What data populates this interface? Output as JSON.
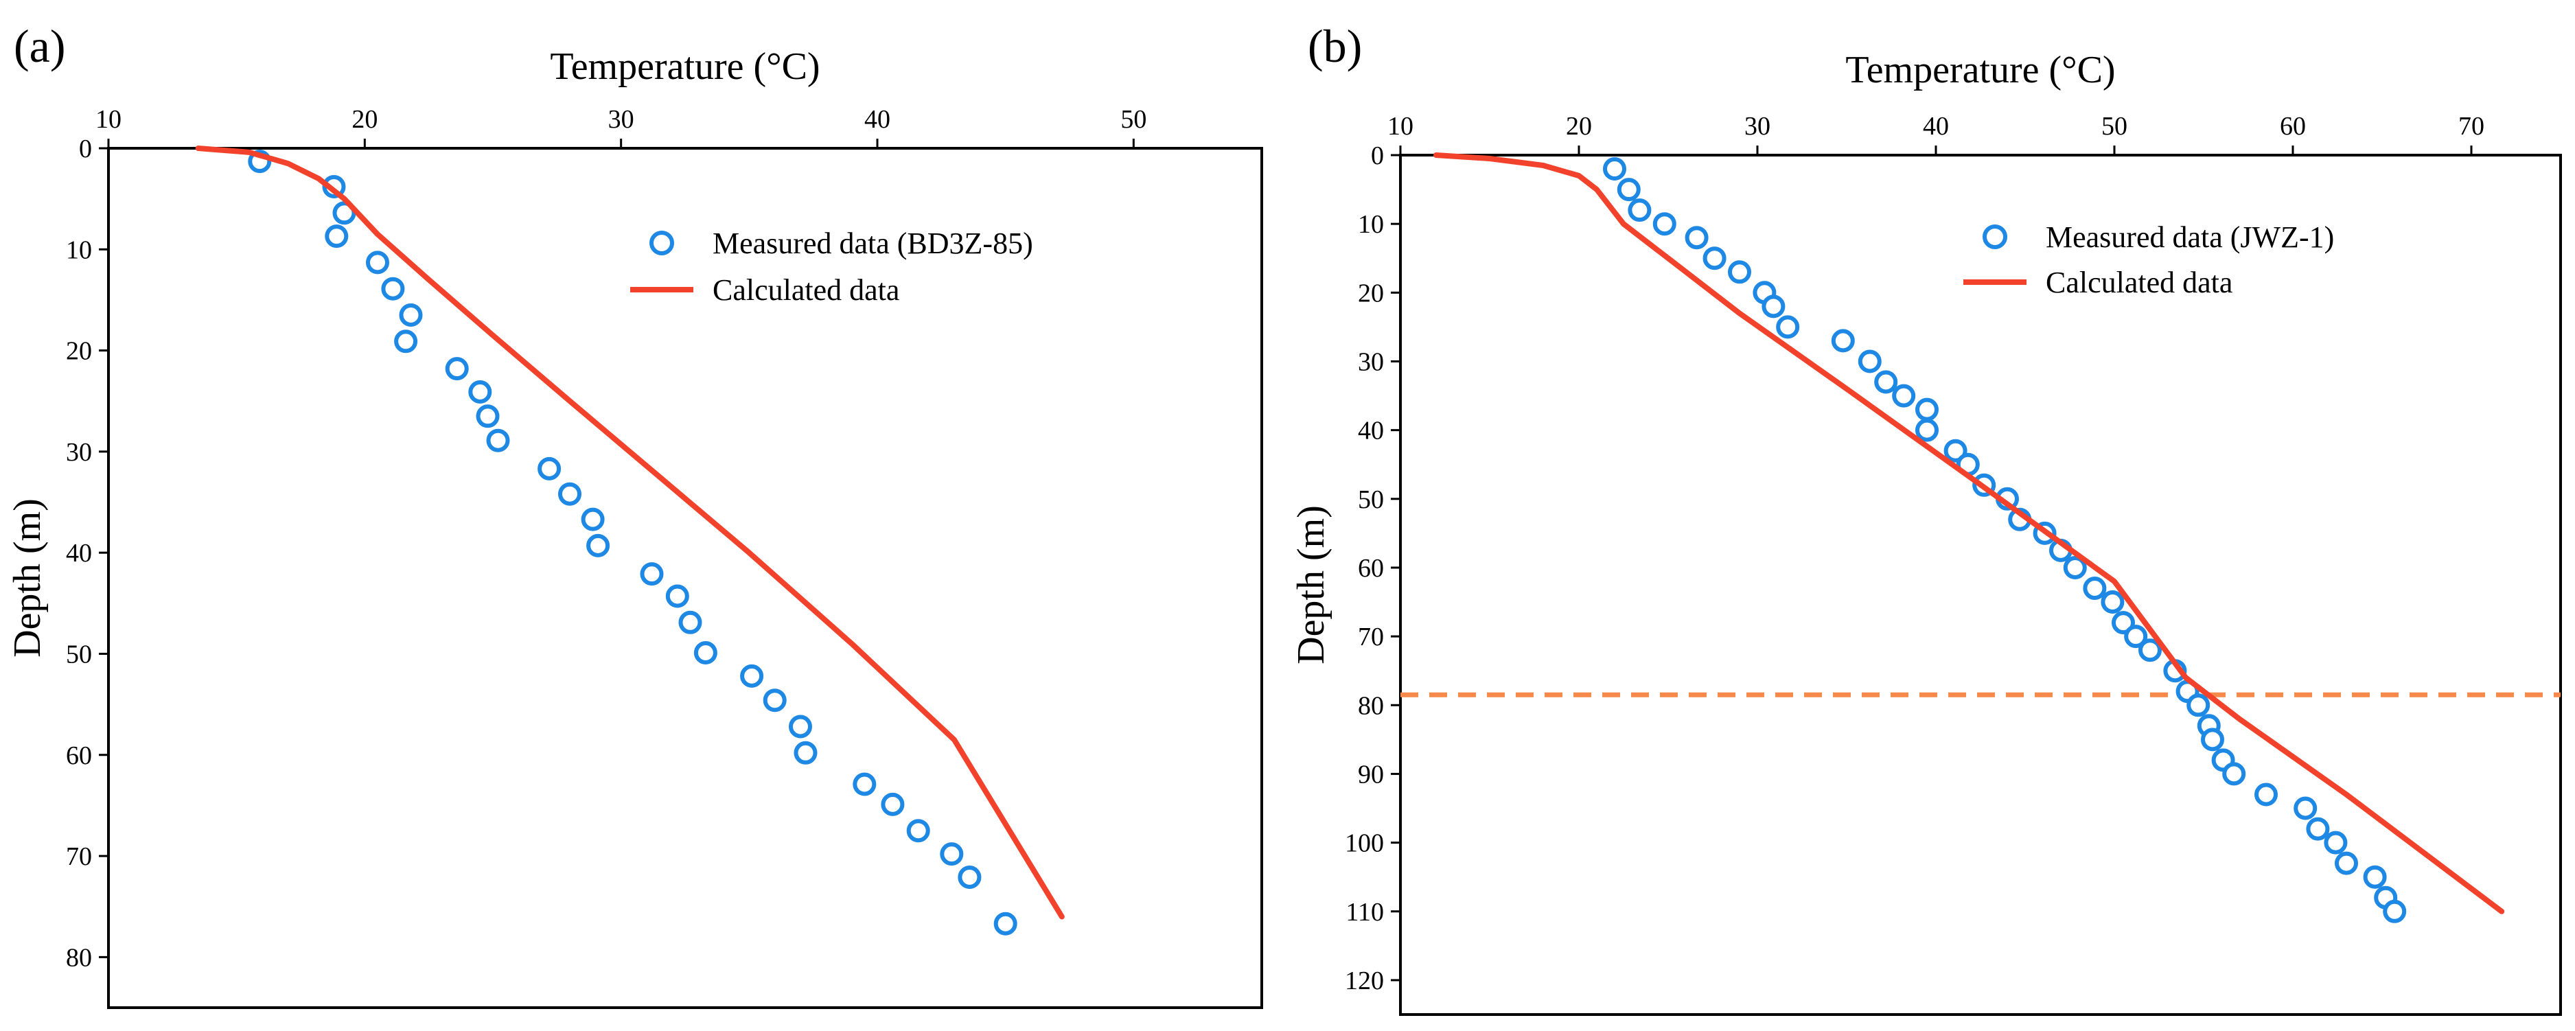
{
  "chart_data": [
    {
      "type": "scatter",
      "panel_label": "(a)",
      "xlabel": "Temperature (°C)",
      "ylabel": "Depth (m)",
      "x_axis_position": "top",
      "y_axis_inverted": true,
      "xlim": [
        10,
        55
      ],
      "ylim": [
        0,
        85
      ],
      "xticks": [
        10,
        20,
        30,
        40,
        50
      ],
      "yticks": [
        0,
        10,
        20,
        30,
        40,
        50,
        60,
        70,
        80
      ],
      "grid": false,
      "legend_position": "top-right",
      "series": [
        {
          "name": "Measured data (BD3Z-85)",
          "kind": "markers",
          "marker": "open-circle",
          "color": "#1E88E5",
          "points": [
            [
              15.9,
              1.3
            ],
            [
              18.8,
              3.8
            ],
            [
              19.2,
              6.4
            ],
            [
              18.9,
              8.7
            ],
            [
              20.5,
              11.3
            ],
            [
              21.1,
              13.9
            ],
            [
              21.8,
              16.5
            ],
            [
              21.6,
              19.1
            ],
            [
              23.6,
              21.8
            ],
            [
              24.5,
              24.1
            ],
            [
              24.8,
              26.5
            ],
            [
              25.2,
              28.9
            ],
            [
              27.2,
              31.7
            ],
            [
              28.0,
              34.2
            ],
            [
              28.9,
              36.7
            ],
            [
              29.1,
              39.3
            ],
            [
              31.2,
              42.1
            ],
            [
              32.2,
              44.3
            ],
            [
              32.7,
              46.9
            ],
            [
              33.3,
              49.9
            ],
            [
              35.1,
              52.2
            ],
            [
              36.0,
              54.6
            ],
            [
              37.0,
              57.2
            ],
            [
              37.2,
              59.8
            ],
            [
              39.5,
              62.9
            ],
            [
              40.6,
              64.9
            ],
            [
              41.6,
              67.5
            ],
            [
              42.9,
              69.8
            ],
            [
              43.6,
              72.1
            ],
            [
              45.0,
              76.7
            ]
          ]
        },
        {
          "name": "Calculated data",
          "kind": "line",
          "color": "#F2422B",
          "points": [
            [
              13.5,
              0
            ],
            [
              15.5,
              0.4
            ],
            [
              17.0,
              1.5
            ],
            [
              18.2,
              3.0
            ],
            [
              19.2,
              5.0
            ],
            [
              20.5,
              8.5
            ],
            [
              22.5,
              13.0
            ],
            [
              25.0,
              18.5
            ],
            [
              28.0,
              25.0
            ],
            [
              31.5,
              32.5
            ],
            [
              35.0,
              40.0
            ],
            [
              39.0,
              49.0
            ],
            [
              43.0,
              58.5
            ],
            [
              47.2,
              76.0
            ]
          ]
        }
      ]
    },
    {
      "type": "scatter",
      "panel_label": "(b)",
      "xlabel": "Temperature (°C)",
      "ylabel": "Depth (m)",
      "x_axis_position": "top",
      "y_axis_inverted": true,
      "xlim": [
        10,
        75
      ],
      "ylim": [
        0,
        125
      ],
      "xticks": [
        10,
        20,
        30,
        40,
        50,
        60,
        70
      ],
      "yticks": [
        0,
        10,
        20,
        30,
        40,
        50,
        60,
        70,
        80,
        90,
        100,
        110,
        120
      ],
      "grid": false,
      "legend_position": "top-right",
      "reference_line": {
        "orientation": "horizontal",
        "depth": 78.5,
        "style": "dashed",
        "color": "#F58A4B"
      },
      "series": [
        {
          "name": "Measured data (JWZ-1)",
          "kind": "markers",
          "marker": "open-circle",
          "color": "#1E88E5",
          "points": [
            [
              22.0,
              2.0
            ],
            [
              22.8,
              5.0
            ],
            [
              23.4,
              8.0
            ],
            [
              24.8,
              10.0
            ],
            [
              26.6,
              12.0
            ],
            [
              27.6,
              15.0
            ],
            [
              29.0,
              17.0
            ],
            [
              30.4,
              20.0
            ],
            [
              30.9,
              22.0
            ],
            [
              31.7,
              25.0
            ],
            [
              34.8,
              27.0
            ],
            [
              36.3,
              30.0
            ],
            [
              37.2,
              33.0
            ],
            [
              38.2,
              35.0
            ],
            [
              39.5,
              37.0
            ],
            [
              39.5,
              40.0
            ],
            [
              41.1,
              43.0
            ],
            [
              41.8,
              45.0
            ],
            [
              42.7,
              48.0
            ],
            [
              44.0,
              50.0
            ],
            [
              44.7,
              53.0
            ],
            [
              46.1,
              55.0
            ],
            [
              47.0,
              57.5
            ],
            [
              47.8,
              60.0
            ],
            [
              48.9,
              63.0
            ],
            [
              49.9,
              65.0
            ],
            [
              50.5,
              68.0
            ],
            [
              51.2,
              70.0
            ],
            [
              52.0,
              72.0
            ],
            [
              53.4,
              75.0
            ],
            [
              54.1,
              78.0
            ],
            [
              54.7,
              80.0
            ],
            [
              55.3,
              83.0
            ],
            [
              55.5,
              85.0
            ],
            [
              56.1,
              88.0
            ],
            [
              56.7,
              90.0
            ],
            [
              58.5,
              93.0
            ],
            [
              60.7,
              95.0
            ],
            [
              61.4,
              98.0
            ],
            [
              62.4,
              100.0
            ],
            [
              63.0,
              103.0
            ],
            [
              64.6,
              105.0
            ],
            [
              65.2,
              108.0
            ],
            [
              65.7,
              110.0
            ]
          ]
        },
        {
          "name": "Calculated data",
          "kind": "line",
          "color": "#F2422B",
          "points": [
            [
              12.0,
              0
            ],
            [
              15.0,
              0.5
            ],
            [
              18.0,
              1.5
            ],
            [
              20.0,
              3.0
            ],
            [
              21.0,
              5.0
            ],
            [
              22.5,
              10.0
            ],
            [
              25.0,
              15.0
            ],
            [
              29.0,
              23.0
            ],
            [
              35.0,
              34.0
            ],
            [
              42.0,
              47.0
            ],
            [
              50.0,
              62.0
            ],
            [
              54.0,
              76.0
            ],
            [
              57.0,
              82.0
            ],
            [
              63.0,
              93.0
            ],
            [
              71.7,
              110.0
            ]
          ]
        }
      ]
    }
  ]
}
